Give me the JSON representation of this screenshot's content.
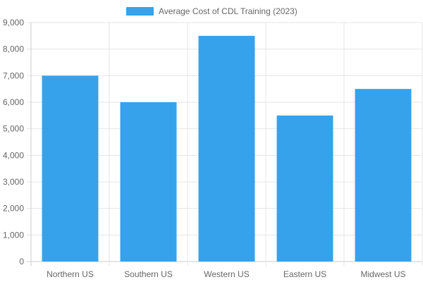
{
  "chart_data": {
    "type": "bar",
    "categories": [
      "Northern US",
      "Southern US",
      "Western US",
      "Eastern US",
      "Midwest US"
    ],
    "series": [
      {
        "name": "Average Cost of CDL Training (2023)",
        "values": [
          7000,
          6000,
          8500,
          5500,
          6500
        ],
        "color": "#36a2eb"
      }
    ],
    "ylim": [
      0,
      9000
    ],
    "y_ticks": [
      "0",
      "1,000",
      "2,000",
      "3,000",
      "4,000",
      "5,000",
      "6,000",
      "7,000",
      "8,000",
      "9,000"
    ],
    "grid": true,
    "legend_position": "top",
    "xlabel": "",
    "ylabel": ""
  }
}
